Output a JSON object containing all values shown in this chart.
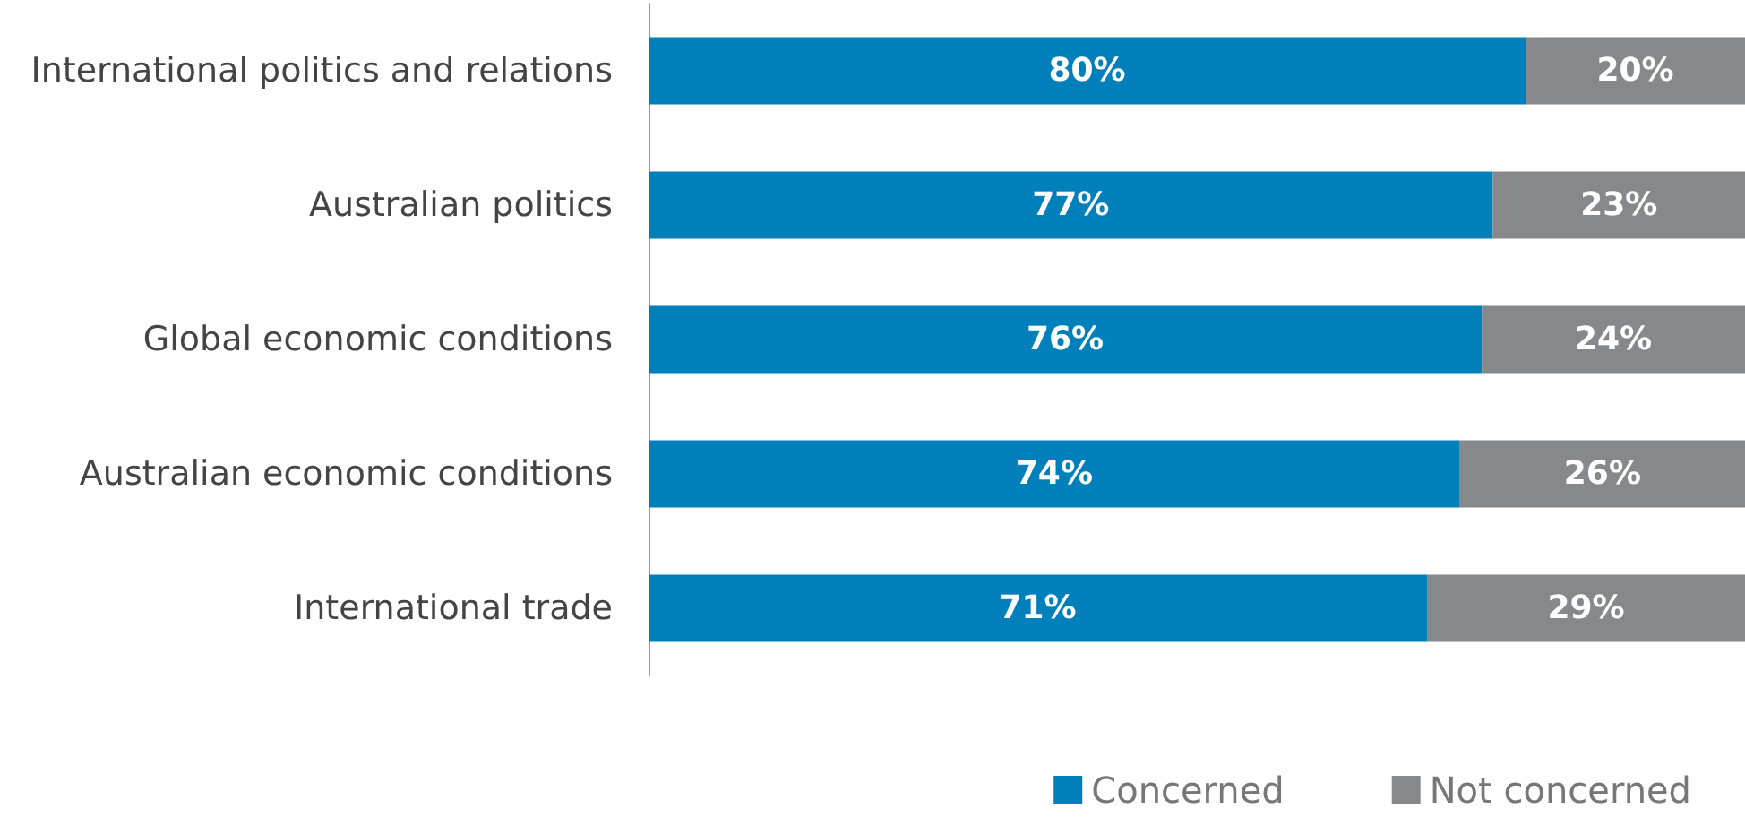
{
  "chart_data": {
    "type": "bar",
    "orientation": "horizontal",
    "stacked": true,
    "categories": [
      "International politics and relations",
      "Australian politics",
      "Global economic conditions",
      "Australian economic conditions",
      "International trade"
    ],
    "series": [
      {
        "name": "Concerned",
        "color": "#0080bb",
        "values": [
          80,
          77,
          76,
          74,
          71
        ],
        "value_labels": [
          "80%",
          "77%",
          "76%",
          "74%",
          "71%"
        ]
      },
      {
        "name": "Not concerned",
        "color": "#86888c",
        "values": [
          20,
          23,
          24,
          26,
          29
        ],
        "value_labels": [
          "20%",
          "23%",
          "24%",
          "26%",
          "29%"
        ]
      }
    ],
    "xlim": [
      0,
      100
    ],
    "tick_labels": "y",
    "grid": false,
    "legend": "bottom right"
  }
}
